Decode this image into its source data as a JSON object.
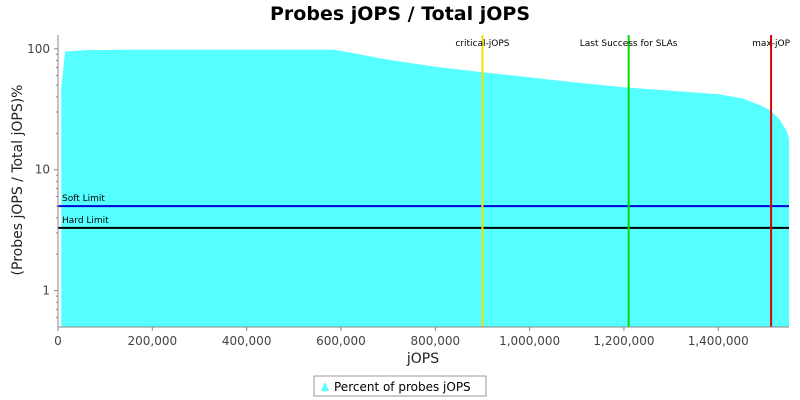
{
  "chart_data": {
    "type": "area",
    "title": "Probes jOPS / Total jOPS",
    "xlabel": "jOPS",
    "ylabel": "(Probes jOPS / Total jOPS)%",
    "xlim": [
      0,
      1550000
    ],
    "ylim": [
      0.5,
      130
    ],
    "yscale": "log",
    "x_ticks": [
      0,
      200000,
      400000,
      600000,
      800000,
      1000000,
      1200000,
      1400000
    ],
    "x_tick_labels": [
      "0",
      "200,000",
      "400,000",
      "600,000",
      "800,000",
      "1,000,000",
      "1,200,000",
      "1,400,000"
    ],
    "y_ticks": [
      1,
      10,
      100
    ],
    "y_tick_labels": [
      "1",
      "10",
      "100"
    ],
    "grid": false,
    "legend_position": "bottom",
    "series": [
      {
        "name": "Percent of probes jOPS",
        "color": "#55ffff",
        "points": [
          [
            7000,
            0.5
          ],
          [
            7000,
            47
          ],
          [
            15000,
            95
          ],
          [
            60000,
            97.5
          ],
          [
            150000,
            98
          ],
          [
            300000,
            98
          ],
          [
            450000,
            98
          ],
          [
            585000,
            98
          ],
          [
            620000,
            93
          ],
          [
            700000,
            81
          ],
          [
            800000,
            71
          ],
          [
            900000,
            64
          ],
          [
            1000000,
            58
          ],
          [
            1100000,
            52.5
          ],
          [
            1200000,
            48
          ],
          [
            1300000,
            45
          ],
          [
            1400000,
            42
          ],
          [
            1450000,
            39
          ],
          [
            1490000,
            34
          ],
          [
            1510000,
            31
          ],
          [
            1530000,
            26
          ],
          [
            1545000,
            21
          ],
          [
            1550000,
            18
          ],
          [
            1550000,
            0.5
          ]
        ]
      }
    ],
    "vertical_markers": [
      {
        "label": "critical-jOPS",
        "x": 900000,
        "color": "#f0e000"
      },
      {
        "label": "Last Success for SLAs",
        "x": 1210000,
        "color": "#00dd00"
      },
      {
        "label": "max-jOP",
        "x": 1512000,
        "color": "#dd0000"
      }
    ],
    "horizontal_markers": [
      {
        "label": "Soft Limit",
        "y": 5,
        "color": "#0000dd"
      },
      {
        "label": "Hard Limit",
        "y": 3.3,
        "color": "#000000"
      }
    ]
  }
}
